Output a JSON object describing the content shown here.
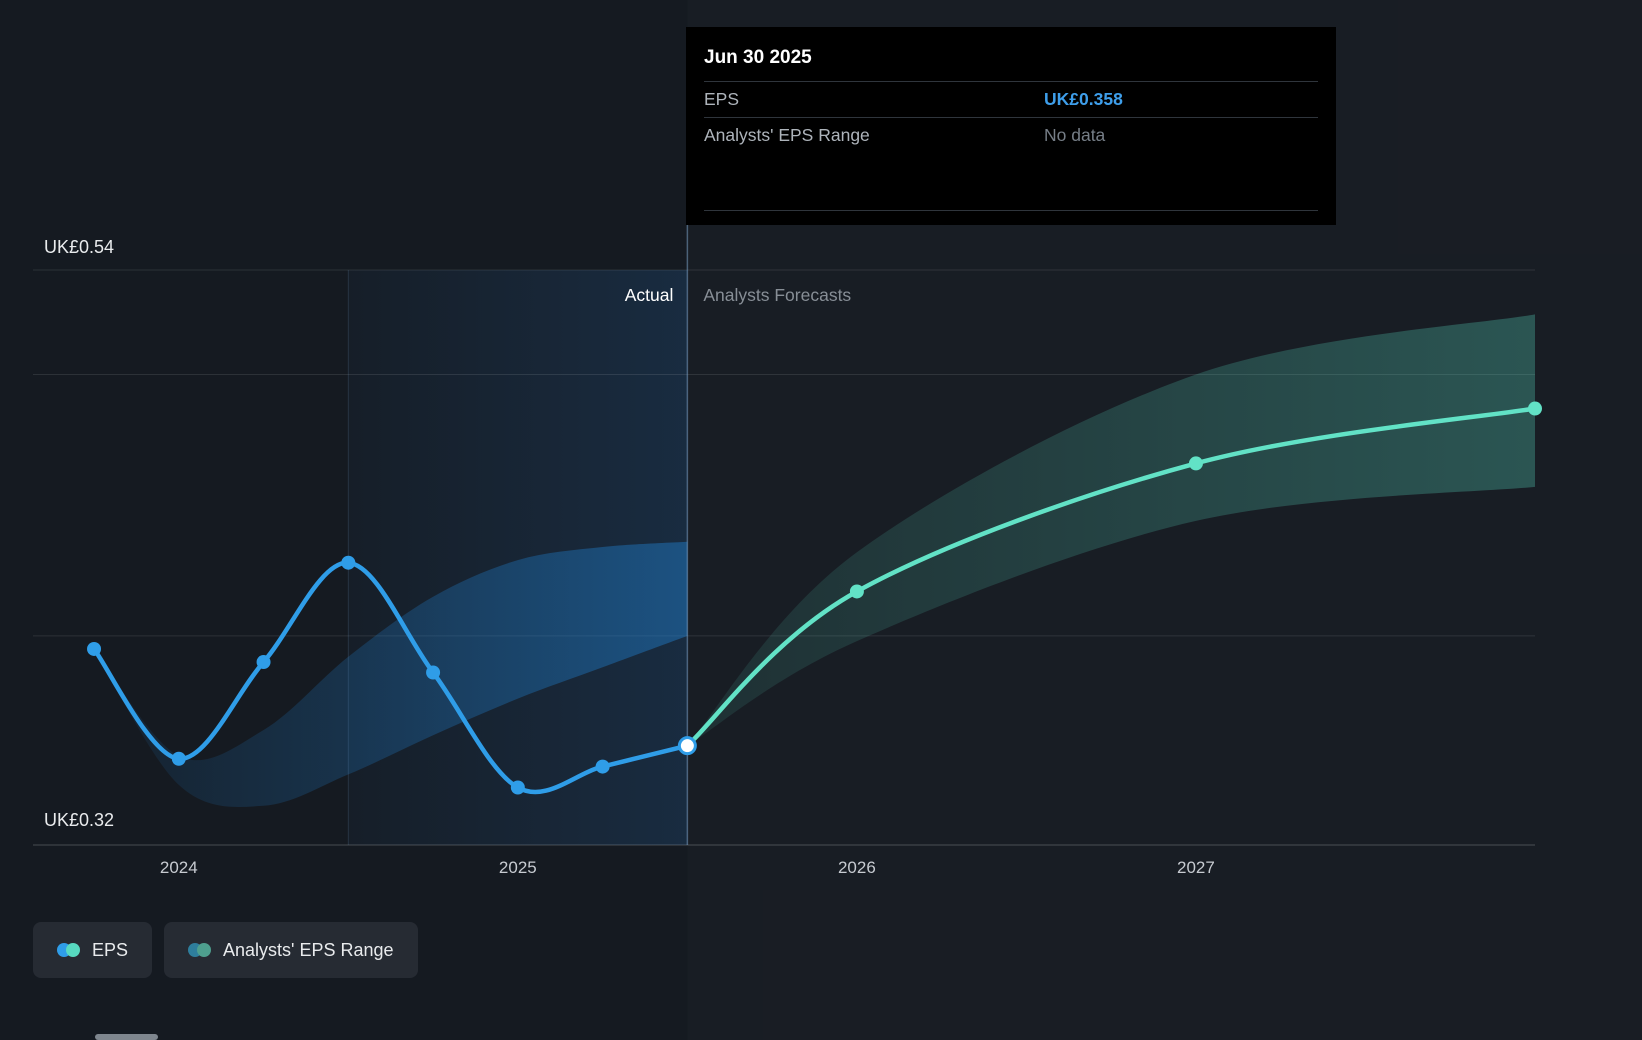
{
  "tooltip": {
    "date": "Jun 30 2025",
    "rows": [
      {
        "label": "EPS",
        "value": "UK£0.358"
      },
      {
        "label": "Analysts' EPS Range",
        "value": "No data"
      }
    ]
  },
  "labels": {
    "actual": "Actual",
    "forecast": "Analysts Forecasts",
    "y_top": "UK£0.54",
    "y_bottom": "UK£0.32"
  },
  "legend": [
    {
      "label": "EPS",
      "dots": [
        "#2F9DE8",
        "#57D9C0"
      ]
    },
    {
      "label": "Analysts' EPS Range",
      "dots": [
        "#2E7E9C",
        "#4E9F8E"
      ]
    }
  ],
  "colors": {
    "background": "#151A21",
    "eps_line": "#2F9DE8",
    "forecast_line": "#62E2C6",
    "eps_band": "#1F78C2",
    "forecast_band": "#57D9C0",
    "highlight": "#2B82D9",
    "divider": "#7FA8CE",
    "tooltip_accent": "#3E9EEA",
    "tooltip_muted": "#767E87"
  },
  "chart_data": {
    "type": "line",
    "title": "EPS actual vs analysts forecast",
    "x_unit": "year (fractional = quarter)",
    "xlim": [
      2023.57,
      2028.0
    ],
    "ylim": [
      0.32,
      0.54
    ],
    "y_gridlines": [
      0.54,
      0.5,
      0.4
    ],
    "y_axis_labels": [
      {
        "value": 0.54,
        "label": "UK£0.54"
      },
      {
        "value": 0.32,
        "label": "UK£0.32"
      }
    ],
    "x_ticks": [
      {
        "year": 2024,
        "label": "2024"
      },
      {
        "year": 2025,
        "label": "2025"
      },
      {
        "year": 2026,
        "label": "2026"
      },
      {
        "year": 2027,
        "label": "2027"
      }
    ],
    "divider_year": 2025.5,
    "highlight_region": [
      2024.5,
      2025.5
    ],
    "series": [
      {
        "name": "EPS (actual)",
        "color": "#2F9DE8",
        "x": [
          2023.75,
          2024.0,
          2024.25,
          2024.5,
          2024.75,
          2025.0,
          2025.25,
          2025.5
        ],
        "values": [
          0.395,
          0.353,
          0.39,
          0.428,
          0.386,
          0.342,
          0.35,
          0.358
        ]
      },
      {
        "name": "EPS (analysts forecast)",
        "color": "#62E2C6",
        "x": [
          2025.5,
          2026.0,
          2027.0,
          2028.0
        ],
        "values": [
          0.358,
          0.417,
          0.466,
          0.487
        ]
      }
    ],
    "bands": [
      {
        "name": "Analysts' EPS Range (past)",
        "x": [
          2023.75,
          2024.0,
          2024.25,
          2024.5,
          2024.75,
          2025.0,
          2025.25,
          2025.5
        ],
        "top": [
          0.395,
          0.354,
          0.364,
          0.392,
          0.415,
          0.429,
          0.434,
          0.436
        ],
        "bottom": [
          0.395,
          0.343,
          0.335,
          0.347,
          0.362,
          0.376,
          0.388,
          0.4
        ]
      },
      {
        "name": "Analysts' EPS Range (forecast)",
        "x": [
          2025.5,
          2026.0,
          2027.0,
          2028.0
        ],
        "top": [
          0.358,
          0.432,
          0.5,
          0.523
        ],
        "bottom": [
          0.358,
          0.398,
          0.444,
          0.457
        ]
      }
    ],
    "boundary_point": {
      "x": 2025.5,
      "value": 0.358
    }
  }
}
